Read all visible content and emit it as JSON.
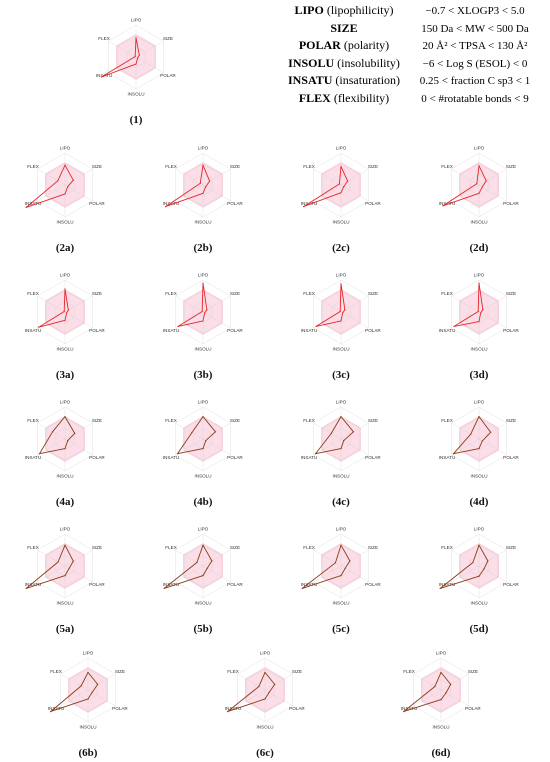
{
  "axes": [
    "LIPO",
    "SIZE",
    "POLAR",
    "INSOLU",
    "INSATU",
    "FLEX"
  ],
  "legend": [
    {
      "key": "LIPO",
      "desc": " (lipophilicity)",
      "range": "−0.7 < XLOGP3 < 5.0"
    },
    {
      "key": "SIZE",
      "desc": "",
      "range": "150 Da < MW < 500 Da"
    },
    {
      "key": "POLAR",
      "desc": " (polarity)",
      "range": "20 Å² < TPSA < 130 Å²"
    },
    {
      "key": "INSOLU",
      "desc": " (insolubility)",
      "range": "−6 < Log S (ESOL) < 0"
    },
    {
      "key": "INSATU",
      "desc": " (insaturation)",
      "range": "0.25 < fraction C sp3 < 1"
    },
    {
      "key": "FLEX",
      "desc": " (flexibility)",
      "range": "0 < #rotatable bonds < 9"
    }
  ],
  "colors": {
    "optimal_fill": "#f9d3df",
    "optimal_stroke": "#f0a0b8",
    "grid": "#cfcfcf",
    "red": "#e8242a",
    "brown": "#8c3a1a"
  },
  "chart_data": [
    {
      "type": "radar",
      "label": "(1)",
      "color": "red",
      "values": [
        0.6,
        0.12,
        0.06,
        0.22,
        1.25,
        0.03
      ]
    },
    {
      "type": "radar",
      "label": "(2a)",
      "color": "red",
      "values": [
        0.62,
        0.3,
        0.1,
        0.28,
        1.4,
        0.26
      ]
    },
    {
      "type": "radar",
      "label": "(2b)",
      "color": "red",
      "values": [
        0.62,
        0.24,
        0.1,
        0.26,
        1.35,
        0.1
      ]
    },
    {
      "type": "radar",
      "label": "(2c)",
      "color": "red",
      "values": [
        0.58,
        0.24,
        0.1,
        0.24,
        1.35,
        0.06
      ]
    },
    {
      "type": "radar",
      "label": "(2d)",
      "color": "red",
      "values": [
        0.6,
        0.26,
        0.12,
        0.26,
        1.3,
        0.08
      ]
    },
    {
      "type": "radar",
      "label": "(3a)",
      "color": "red",
      "values": [
        0.72,
        0.12,
        0.06,
        0.26,
        0.95,
        0.03
      ]
    },
    {
      "type": "radar",
      "label": "(3b)",
      "color": "red",
      "values": [
        0.9,
        0.14,
        0.06,
        0.28,
        0.9,
        0.03
      ]
    },
    {
      "type": "radar",
      "label": "(3c)",
      "color": "red",
      "values": [
        0.88,
        0.14,
        0.06,
        0.28,
        0.9,
        0.03
      ]
    },
    {
      "type": "radar",
      "label": "(3d)",
      "color": "red",
      "values": [
        0.9,
        0.14,
        0.06,
        0.3,
        0.9,
        0.03
      ]
    },
    {
      "type": "radar",
      "label": "(4a)",
      "color": "brown",
      "values": [
        0.7,
        0.35,
        0.1,
        0.3,
        0.92,
        0.45
      ]
    },
    {
      "type": "radar",
      "label": "(4b)",
      "color": "brown",
      "values": [
        0.7,
        0.45,
        0.1,
        0.3,
        0.92,
        0.4
      ]
    },
    {
      "type": "radar",
      "label": "(4c)",
      "color": "brown",
      "values": [
        0.7,
        0.45,
        0.1,
        0.3,
        0.92,
        0.35
      ]
    },
    {
      "type": "radar",
      "label": "(4d)",
      "color": "brown",
      "values": [
        0.7,
        0.42,
        0.12,
        0.3,
        0.92,
        0.3
      ]
    },
    {
      "type": "radar",
      "label": "(5a)",
      "color": "brown",
      "values": [
        0.65,
        0.3,
        0.15,
        0.3,
        1.4,
        0.25
      ]
    },
    {
      "type": "radar",
      "label": "(5b)",
      "color": "brown",
      "values": [
        0.65,
        0.32,
        0.15,
        0.3,
        1.4,
        0.22
      ]
    },
    {
      "type": "radar",
      "label": "(5c)",
      "color": "brown",
      "values": [
        0.65,
        0.32,
        0.15,
        0.3,
        1.4,
        0.2
      ]
    },
    {
      "type": "radar",
      "label": "(5d)",
      "color": "brown",
      "values": [
        0.65,
        0.32,
        0.18,
        0.32,
        1.4,
        0.22
      ]
    },
    {
      "type": "radar",
      "label": "(6b)",
      "color": "brown",
      "values": [
        0.55,
        0.35,
        0.15,
        0.28,
        1.35,
        0.25
      ]
    },
    {
      "type": "radar",
      "label": "(6c)",
      "color": "brown",
      "values": [
        0.55,
        0.35,
        0.15,
        0.28,
        1.35,
        0.22
      ]
    },
    {
      "type": "radar",
      "label": "(6d)",
      "color": "brown",
      "values": [
        0.55,
        0.35,
        0.18,
        0.3,
        1.35,
        0.22
      ]
    }
  ]
}
